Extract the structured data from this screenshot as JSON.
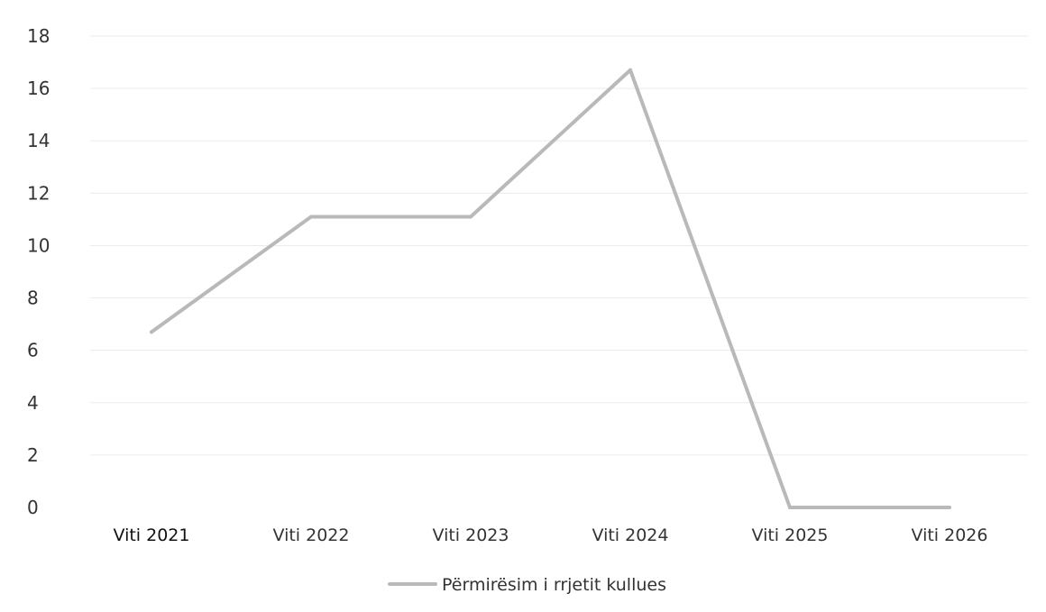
{
  "chart_data": {
    "type": "line",
    "categories": [
      "Viti 2021",
      "Viti 2022",
      "Viti 2023",
      "Viti 2024",
      "Viti 2025",
      "Viti 2026"
    ],
    "series": [
      {
        "name": "Përmirësim i rrjetit kullues",
        "values": [
          6.7,
          11.1,
          11.1,
          16.7,
          0,
          0
        ],
        "color": "#b9b9b9"
      }
    ],
    "yticks": [
      "0",
      "2",
      "4",
      "6",
      "8",
      "10",
      "12",
      "14",
      "16",
      "18"
    ],
    "ylim": [
      0,
      18
    ],
    "grid": true,
    "legend_position": "bottom"
  }
}
